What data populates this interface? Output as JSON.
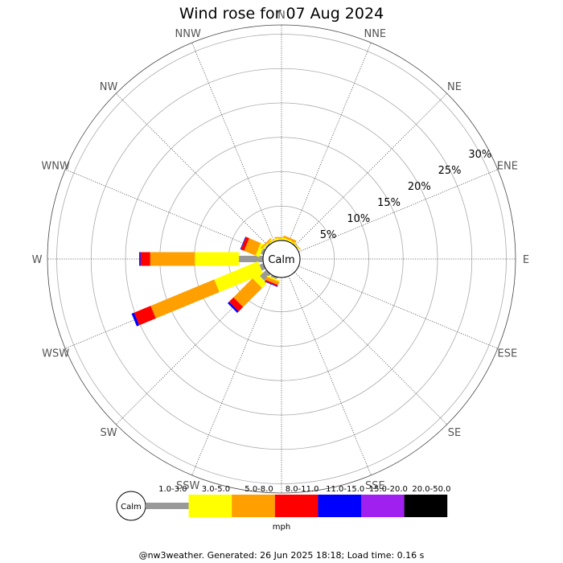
{
  "title": "Wind rose for 07 Aug 2024",
  "footer": "@nw3weather. Generated: 26 Jun 2025 18:18; Load time: 0.16 s",
  "calm_label": "Calm",
  "units_label": "mph",
  "chart_data": {
    "type": "wind-rose",
    "title": "Wind rose for 07 Aug 2024",
    "directions": [
      "N",
      "NNE",
      "NE",
      "ENE",
      "E",
      "ESE",
      "SE",
      "SSE",
      "S",
      "SSW",
      "SW",
      "WSW",
      "W",
      "WNW",
      "NW",
      "NNW"
    ],
    "rings_percent": [
      5,
      10,
      15,
      20,
      25,
      30
    ],
    "ring_labels": [
      "5%",
      "10%",
      "15%",
      "20%",
      "25%",
      "30%"
    ],
    "speed_bins": [
      {
        "label": "1.0-3.0",
        "color": "#999999"
      },
      {
        "label": "3.0-5.0",
        "color": "#ffff00"
      },
      {
        "label": "5.0-8.0",
        "color": "#ff9f00"
      },
      {
        "label": "8.0-11.0",
        "color": "#ff0000"
      },
      {
        "label": "11.0-15.0",
        "color": "#0000ff"
      },
      {
        "label": "15.0-20.0",
        "color": "#a020f0"
      },
      {
        "label": "20.0-50.0",
        "color": "#000000"
      }
    ],
    "series": [
      {
        "direction": "W",
        "percent_by_bin": [
          3.5,
          6.4,
          6.5,
          1.4,
          0.2,
          0,
          0
        ]
      },
      {
        "direction": "WSW",
        "percent_by_bin": [
          0.6,
          6.9,
          10.0,
          2.6,
          0.4,
          0,
          0
        ]
      },
      {
        "direction": "SW",
        "percent_by_bin": [
          1.3,
          1.0,
          3.9,
          0.9,
          0.3,
          0,
          0
        ]
      },
      {
        "direction": "SSW",
        "percent_by_bin": [
          0.3,
          0.2,
          0.5,
          0.2,
          0.1,
          0,
          0
        ]
      },
      {
        "direction": "WNW",
        "percent_by_bin": [
          0.4,
          0.6,
          1.8,
          0.5,
          0.1,
          0,
          0
        ]
      },
      {
        "direction": "NW",
        "percent_by_bin": [
          0.2,
          0.2,
          0.2,
          0,
          0,
          0,
          0
        ]
      },
      {
        "direction": "NNW",
        "percent_by_bin": [
          0.1,
          0.1,
          0.1,
          0,
          0,
          0,
          0
        ]
      },
      {
        "direction": "N",
        "percent_by_bin": [
          0.1,
          0.2,
          0.2,
          0,
          0,
          0,
          0
        ]
      },
      {
        "direction": "NNE",
        "percent_by_bin": [
          0.1,
          0.2,
          0.3,
          0,
          0,
          0,
          0
        ]
      },
      {
        "direction": "NE",
        "percent_by_bin": [
          0.1,
          0.1,
          0.1,
          0,
          0,
          0,
          0
        ]
      }
    ]
  }
}
